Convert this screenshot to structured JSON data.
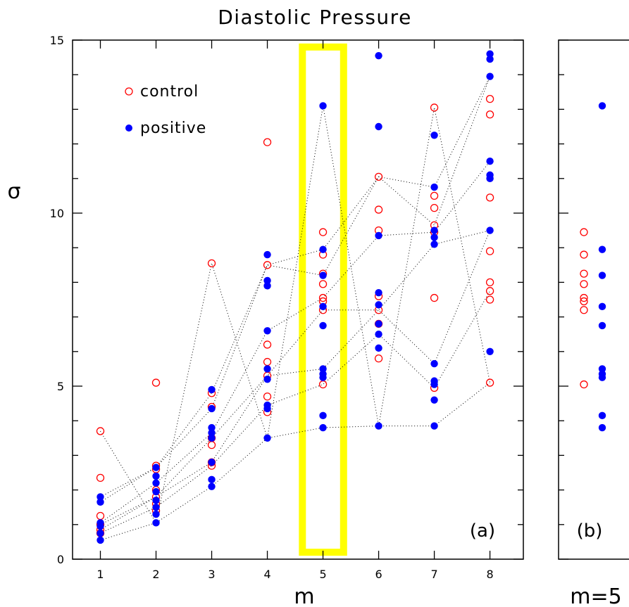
{
  "chart_data": [
    {
      "type": "scatter",
      "title": "Diastolic Pressure",
      "xlabel": "m",
      "ylabel": "σ",
      "panel_label": "(a)",
      "xlim": [
        0.5,
        8.6
      ],
      "ylim": [
        0,
        15
      ],
      "xticks": [
        "1",
        "2",
        "3",
        "4",
        "5",
        "6",
        "7",
        "8"
      ],
      "yticks": [
        "0",
        "5",
        "10",
        "15"
      ],
      "legend": {
        "position": "top-left",
        "entries": [
          {
            "label": "control",
            "marker": "open-circle",
            "color": "#ff0000"
          },
          {
            "label": "positive",
            "marker": "filled-circle",
            "color": "#0000ff"
          }
        ]
      },
      "highlight": {
        "x": 5,
        "color": "#ffff00",
        "xrange": [
          4.63,
          5.37
        ],
        "yrange": [
          0.2,
          14.8
        ]
      },
      "dotted_lines": "gray dotted trajectories connect each subject's values across m",
      "series": [
        {
          "name": "control",
          "points": [
            [
              1,
              3.7
            ],
            [
              1,
              2.35
            ],
            [
              1,
              1.25
            ],
            [
              1,
              1.0
            ],
            [
              1,
              0.85
            ],
            [
              1,
              0.75
            ],
            [
              2,
              5.1
            ],
            [
              2,
              2.7
            ],
            [
              2,
              2.6
            ],
            [
              2,
              2.0
            ],
            [
              2,
              1.8
            ],
            [
              2,
              1.6
            ],
            [
              2,
              1.4
            ],
            [
              3,
              8.55
            ],
            [
              3,
              4.8
            ],
            [
              3,
              4.4
            ],
            [
              3,
              3.5
            ],
            [
              3,
              3.3
            ],
            [
              3,
              2.8
            ],
            [
              3,
              2.7
            ],
            [
              4,
              12.05
            ],
            [
              4,
              8.5
            ],
            [
              4,
              6.2
            ],
            [
              4,
              5.7
            ],
            [
              4,
              5.3
            ],
            [
              4,
              4.7
            ],
            [
              4,
              4.25
            ],
            [
              5,
              9.45
            ],
            [
              5,
              8.8
            ],
            [
              5,
              8.25
            ],
            [
              5,
              7.95
            ],
            [
              5,
              7.55
            ],
            [
              5,
              7.45
            ],
            [
              5,
              7.2
            ],
            [
              5,
              5.05
            ],
            [
              6,
              11.05
            ],
            [
              6,
              10.1
            ],
            [
              6,
              9.5
            ],
            [
              6,
              7.6
            ],
            [
              6,
              7.2
            ],
            [
              6,
              6.8
            ],
            [
              6,
              5.8
            ],
            [
              7,
              13.05
            ],
            [
              7,
              10.5
            ],
            [
              7,
              10.15
            ],
            [
              7,
              9.65
            ],
            [
              7,
              9.45
            ],
            [
              7,
              7.55
            ],
            [
              7,
              4.95
            ],
            [
              8,
              13.3
            ],
            [
              8,
              12.85
            ],
            [
              8,
              10.45
            ],
            [
              8,
              8.9
            ],
            [
              8,
              8.0
            ],
            [
              8,
              7.75
            ],
            [
              8,
              7.5
            ],
            [
              8,
              5.1
            ]
          ]
        },
        {
          "name": "positive",
          "points": [
            [
              1,
              1.8
            ],
            [
              1,
              1.65
            ],
            [
              1,
              1.05
            ],
            [
              1,
              0.95
            ],
            [
              1,
              0.75
            ],
            [
              1,
              0.55
            ],
            [
              2,
              2.65
            ],
            [
              2,
              2.4
            ],
            [
              2,
              2.2
            ],
            [
              2,
              1.95
            ],
            [
              2,
              1.7
            ],
            [
              2,
              1.5
            ],
            [
              2,
              1.3
            ],
            [
              2,
              1.05
            ],
            [
              3,
              4.9
            ],
            [
              3,
              4.35
            ],
            [
              3,
              3.8
            ],
            [
              3,
              3.65
            ],
            [
              3,
              3.5
            ],
            [
              3,
              2.8
            ],
            [
              3,
              2.3
            ],
            [
              3,
              2.1
            ],
            [
              4,
              8.8
            ],
            [
              4,
              8.05
            ],
            [
              4,
              7.9
            ],
            [
              4,
              6.6
            ],
            [
              4,
              5.5
            ],
            [
              4,
              5.2
            ],
            [
              4,
              4.45
            ],
            [
              4,
              4.35
            ],
            [
              4,
              3.5
            ],
            [
              5,
              13.1
            ],
            [
              5,
              8.95
            ],
            [
              5,
              8.2
            ],
            [
              5,
              7.3
            ],
            [
              5,
              6.75
            ],
            [
              5,
              5.5
            ],
            [
              5,
              5.35
            ],
            [
              5,
              5.25
            ],
            [
              5,
              4.15
            ],
            [
              5,
              3.8
            ],
            [
              6,
              14.55
            ],
            [
              6,
              12.5
            ],
            [
              6,
              9.35
            ],
            [
              6,
              7.7
            ],
            [
              6,
              7.35
            ],
            [
              6,
              6.8
            ],
            [
              6,
              6.5
            ],
            [
              6,
              6.1
            ],
            [
              6,
              3.85
            ],
            [
              7,
              12.25
            ],
            [
              7,
              10.75
            ],
            [
              7,
              9.5
            ],
            [
              7,
              9.3
            ],
            [
              7,
              9.1
            ],
            [
              7,
              5.65
            ],
            [
              7,
              5.15
            ],
            [
              7,
              5.05
            ],
            [
              7,
              4.6
            ],
            [
              7,
              3.85
            ],
            [
              8,
              14.6
            ],
            [
              8,
              14.45
            ],
            [
              8,
              13.95
            ],
            [
              8,
              11.5
            ],
            [
              8,
              11.1
            ],
            [
              8,
              11.0
            ],
            [
              8,
              9.5
            ],
            [
              8,
              6.0
            ]
          ]
        }
      ]
    },
    {
      "type": "scatter",
      "panel_label": "(b)",
      "xlabel": "m=5",
      "ylim": [
        0,
        15
      ],
      "series": [
        {
          "name": "control",
          "values": [
            9.45,
            8.8,
            8.25,
            7.95,
            7.55,
            7.45,
            7.2,
            5.05
          ]
        },
        {
          "name": "positive",
          "values": [
            13.1,
            8.95,
            8.2,
            7.3,
            6.75,
            5.5,
            5.35,
            5.25,
            4.15,
            3.8
          ]
        }
      ]
    }
  ],
  "colors": {
    "control": "#ff0000",
    "positive": "#0000ff",
    "highlight": "#ffff00",
    "trajectory": "#000000"
  }
}
